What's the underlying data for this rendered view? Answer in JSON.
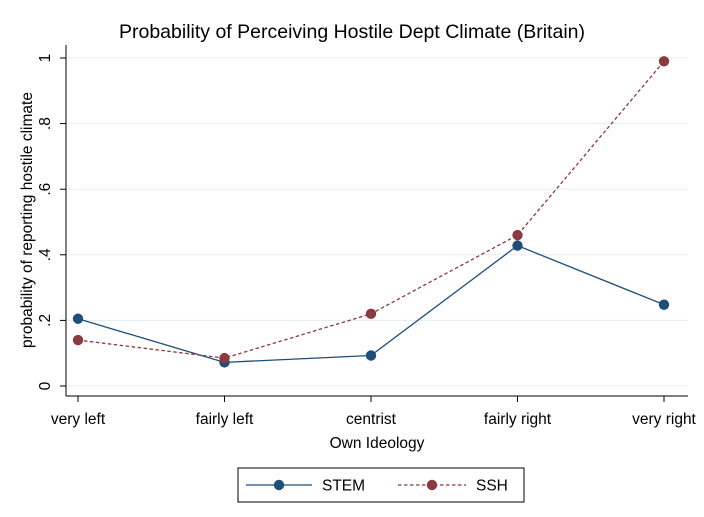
{
  "chart_data": {
    "type": "line",
    "title": "Probability of Perceiving Hostile Dept Climate (Britain)",
    "xlabel": "Own Ideology",
    "ylabel": "probability of reporting hostile climate",
    "categories": [
      "very left",
      "fairly left",
      "centrist",
      "fairly right",
      "very right"
    ],
    "ylim": [
      0,
      1
    ],
    "yticks": [
      0,
      0.2,
      0.4,
      0.6,
      0.8,
      1
    ],
    "ytick_labels": [
      "0",
      ".2",
      ".4",
      ".6",
      ".8",
      "1"
    ],
    "grid": true,
    "legend_position": "bottom",
    "series": [
      {
        "name": "STEM",
        "color": "#1f4e79",
        "line_style": "solid",
        "marker": "circle",
        "values": [
          0.205,
          0.072,
          0.093,
          0.428,
          0.248
        ]
      },
      {
        "name": "SSH",
        "color": "#8b3a3f",
        "line_style": "dashed",
        "marker": "circle",
        "values": [
          0.14,
          0.085,
          0.22,
          0.46,
          0.99
        ]
      }
    ]
  }
}
